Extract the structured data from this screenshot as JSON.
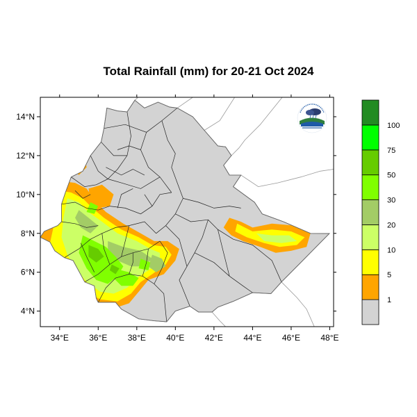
{
  "map": {
    "title": "Total Rainfall (mm) for 20-21 Oct 2024",
    "lon_range": [
      33,
      48.2
    ],
    "lat_range": [
      3.2,
      15
    ],
    "lon_ticks": [
      {
        "value": 34,
        "label": "34°E"
      },
      {
        "value": 36,
        "label": "36°E"
      },
      {
        "value": 38,
        "label": "38°E"
      },
      {
        "value": 40,
        "label": "40°E"
      },
      {
        "value": 42,
        "label": "42°E"
      },
      {
        "value": 44,
        "label": "44°E"
      },
      {
        "value": 46,
        "label": "46°E"
      },
      {
        "value": 48,
        "label": "48°E"
      }
    ],
    "lat_ticks": [
      {
        "value": 4,
        "label": "4°N"
      },
      {
        "value": 6,
        "label": "6°N"
      },
      {
        "value": 8,
        "label": "8°N"
      },
      {
        "value": 10,
        "label": "10°N"
      },
      {
        "value": 12,
        "label": "12°N"
      },
      {
        "value": 14,
        "label": "14°N"
      }
    ],
    "colors": {
      "land": "#d3d3d3",
      "lt1": "#d3d3d3",
      "1_5": "#ffa500",
      "5_10": "#ffff00",
      "10_20": "#ccff66",
      "20_30": "#a3cc66",
      "30_50": "#80ff00",
      "50_75": "#66cc00",
      "75_100": "#00ff00",
      "gt100": "#228b22"
    }
  },
  "colorbar": {
    "levels": [
      "1",
      "5",
      "10",
      "20",
      "30",
      "50",
      "75",
      "100"
    ],
    "colors": [
      "#d3d3d3",
      "#ffa500",
      "#ffff00",
      "#ccff66",
      "#a3cc66",
      "#80ff00",
      "#66cc00",
      "#00ff00",
      "#228b22"
    ]
  },
  "logo": {
    "icon": "ethiopian-meteorology-institute-logo"
  }
}
